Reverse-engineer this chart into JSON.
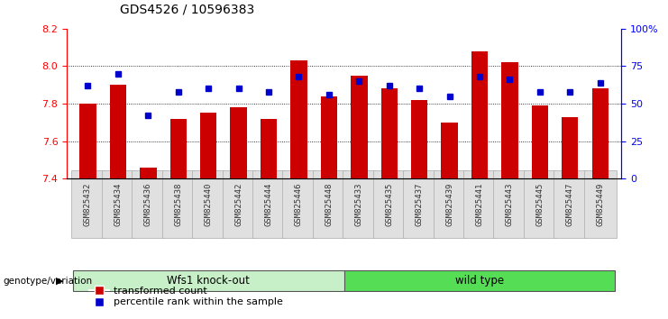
{
  "title": "GDS4526 / 10596383",
  "samples": [
    "GSM825432",
    "GSM825434",
    "GSM825436",
    "GSM825438",
    "GSM825440",
    "GSM825442",
    "GSM825444",
    "GSM825446",
    "GSM825448",
    "GSM825433",
    "GSM825435",
    "GSM825437",
    "GSM825439",
    "GSM825441",
    "GSM825443",
    "GSM825445",
    "GSM825447",
    "GSM825449"
  ],
  "red_values": [
    7.8,
    7.9,
    7.46,
    7.72,
    7.75,
    7.78,
    7.72,
    8.03,
    7.84,
    7.95,
    7.88,
    7.82,
    7.7,
    8.08,
    8.02,
    7.79,
    7.73,
    7.88
  ],
  "blue_percentiles": [
    62,
    70,
    42,
    58,
    60,
    60,
    58,
    68,
    56,
    65,
    62,
    60,
    55,
    68,
    66,
    58,
    58,
    64
  ],
  "groups": [
    {
      "label": "Wfs1 knock-out",
      "start": 0,
      "end": 9,
      "color": "#AAEAAA"
    },
    {
      "label": "wild type",
      "start": 9,
      "end": 18,
      "color": "#44DD44"
    }
  ],
  "ymin": 7.4,
  "ymax": 8.2,
  "yticks": [
    7.4,
    7.6,
    7.8,
    8.0,
    8.2
  ],
  "right_yticks": [
    0,
    25,
    50,
    75,
    100
  ],
  "right_ytick_labels": [
    "0",
    "25",
    "50",
    "75",
    "100%"
  ],
  "bar_color": "#CC0000",
  "dot_color": "#0000CC",
  "background_color": "#FFFFFF",
  "xlabel_group": "genotype/variation",
  "legend_items": [
    "transformed count",
    "percentile rank within the sample"
  ],
  "group_label_color_0": "#C8F0C8",
  "group_label_color_1": "#55DD55"
}
